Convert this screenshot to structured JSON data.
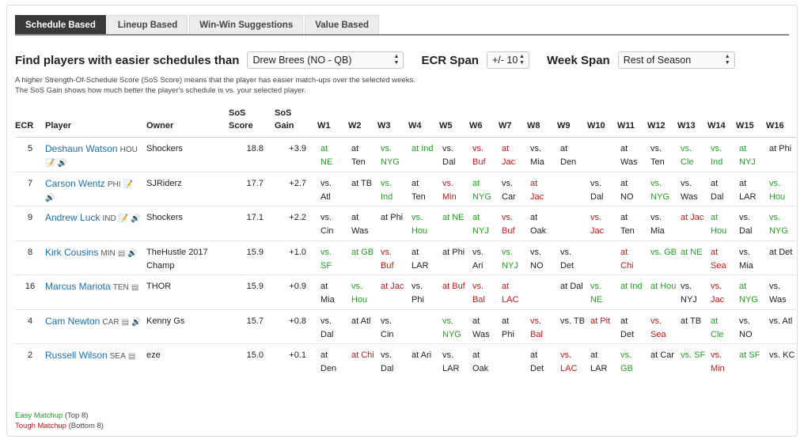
{
  "tabs": [
    {
      "label": "Schedule Based",
      "active": true
    },
    {
      "label": "Lineup Based",
      "active": false
    },
    {
      "label": "Win-Win Suggestions",
      "active": false
    },
    {
      "label": "Value Based",
      "active": false
    }
  ],
  "controls": {
    "find_label": "Find players with easier schedules than",
    "player_select": "Drew Brees (NO - QB)",
    "ecr_label": "ECR Span",
    "ecr_select": "+/- 10",
    "week_label": "Week Span",
    "week_select": "Rest of Season"
  },
  "description": {
    "line1": "A higher Strength-Of-Schedule Score (SoS Score) means that the player has easier match-ups over the selected weeks.",
    "line2": "The SoS Gain shows how much better the player's schedule is vs. your selected player."
  },
  "columns": {
    "ecr": "ECR",
    "player": "Player",
    "owner": "Owner",
    "sos_score_1": "SoS",
    "sos_score_2": "Score",
    "sos_gain_1": "SoS",
    "sos_gain_2": "Gain",
    "weeks": [
      "W1",
      "W2",
      "W3",
      "W4",
      "W5",
      "W6",
      "W7",
      "W8",
      "W9",
      "W10",
      "W11",
      "W12",
      "W13",
      "W14",
      "W15",
      "W16"
    ]
  },
  "rows": [
    {
      "ecr": "5",
      "name": "Deshaun Watson",
      "team": "HOU",
      "icons": [
        "note-add-icon",
        "audio-icon"
      ],
      "owner": "Shockers",
      "score": "18.8",
      "gain": "+3.9",
      "weeks": [
        [
          "at",
          "NE",
          "e"
        ],
        [
          "at",
          "Ten",
          "n"
        ],
        [
          "vs.",
          "NYG",
          "e"
        ],
        [
          "at Ind",
          "",
          "e"
        ],
        [
          "vs.",
          "Dal",
          "n"
        ],
        [
          "vs.",
          "Buf",
          "t"
        ],
        [
          "at",
          "Jac",
          "t"
        ],
        [
          "vs.",
          "Mia",
          "n"
        ],
        [
          "at",
          "Den",
          "n"
        ],
        [
          "",
          "",
          " n"
        ],
        [
          "at",
          "Was",
          "n"
        ],
        [
          "vs.",
          "Ten",
          "n"
        ],
        [
          "vs.",
          "Cle",
          "e"
        ],
        [
          "vs.",
          "Ind",
          "e"
        ],
        [
          "at",
          "NYJ",
          "e"
        ],
        [
          "at Phi",
          "",
          "n"
        ]
      ]
    },
    {
      "ecr": "7",
      "name": "Carson Wentz",
      "team": "PHI",
      "icons": [
        "note-add-icon",
        "audio-icon"
      ],
      "owner": "SJRiderz",
      "score": "17.7",
      "gain": "+2.7",
      "weeks": [
        [
          "vs.",
          "Atl",
          "n"
        ],
        [
          "at TB",
          "",
          "n"
        ],
        [
          "vs.",
          "Ind",
          "e"
        ],
        [
          "at",
          "Ten",
          "n"
        ],
        [
          "vs.",
          "Min",
          "t"
        ],
        [
          "at",
          "NYG",
          "e"
        ],
        [
          "vs.",
          "Car",
          "n"
        ],
        [
          "at",
          "Jac",
          "t"
        ],
        [
          "",
          "",
          "n"
        ],
        [
          "vs.",
          "Dal",
          "n"
        ],
        [
          "at",
          "NO",
          "n"
        ],
        [
          "vs.",
          "NYG",
          "e"
        ],
        [
          "vs.",
          "Was",
          "n"
        ],
        [
          "at",
          "Dal",
          "n"
        ],
        [
          "at",
          "LAR",
          "n"
        ],
        [
          "vs.",
          "Hou",
          "e"
        ]
      ]
    },
    {
      "ecr": "9",
      "name": "Andrew Luck",
      "team": "IND",
      "icons": [
        "note-add-icon",
        "audio-icon"
      ],
      "owner": "Shockers",
      "score": "17.1",
      "gain": "+2.2",
      "weeks": [
        [
          "vs.",
          "Cin",
          "n"
        ],
        [
          "at",
          "Was",
          "n"
        ],
        [
          "at Phi",
          "",
          "n"
        ],
        [
          "vs.",
          "Hou",
          "e"
        ],
        [
          "at NE",
          "",
          "e"
        ],
        [
          "at",
          "NYJ",
          "e"
        ],
        [
          "vs.",
          "Buf",
          "t"
        ],
        [
          "at",
          "Oak",
          "n"
        ],
        [
          "",
          "",
          "n"
        ],
        [
          "vs.",
          "Jac",
          "t"
        ],
        [
          "at",
          "Ten",
          "n"
        ],
        [
          "vs.",
          "Mia",
          "n"
        ],
        [
          "at Jac",
          "",
          "t"
        ],
        [
          "at",
          "Hou",
          "e"
        ],
        [
          "vs.",
          "Dal",
          "n"
        ],
        [
          "vs.",
          "NYG",
          "e"
        ]
      ]
    },
    {
      "ecr": "8",
      "name": "Kirk Cousins",
      "team": "MIN",
      "icons": [
        "note-icon",
        "audio-icon"
      ],
      "owner": "TheHustle 2017 Champ",
      "score": "15.9",
      "gain": "+1.0",
      "weeks": [
        [
          "vs.",
          "SF",
          "e"
        ],
        [
          "at GB",
          "",
          "e"
        ],
        [
          "vs.",
          "Buf",
          "t"
        ],
        [
          "at",
          "LAR",
          "n"
        ],
        [
          "at Phi",
          "",
          "n"
        ],
        [
          "vs.",
          "Ari",
          "n"
        ],
        [
          "vs.",
          "NYJ",
          "e"
        ],
        [
          "vs.",
          "NO",
          "n"
        ],
        [
          "vs.",
          "Det",
          "n"
        ],
        [
          "",
          "",
          "n"
        ],
        [
          "at",
          "Chi",
          "t"
        ],
        [
          "vs. GB",
          "",
          "e"
        ],
        [
          "at NE",
          "",
          "e"
        ],
        [
          "at",
          "Sea",
          "t"
        ],
        [
          "vs.",
          "Mia",
          "n"
        ],
        [
          "at Det",
          "",
          "n"
        ]
      ]
    },
    {
      "ecr": "16",
      "name": "Marcus Mariota",
      "team": "TEN",
      "icons": [
        "note-icon"
      ],
      "owner": "THOR",
      "score": "15.9",
      "gain": "+0.9",
      "weeks": [
        [
          "at",
          "Mia",
          "n"
        ],
        [
          "vs.",
          "Hou",
          "e"
        ],
        [
          "at Jac",
          "",
          "t"
        ],
        [
          "vs.",
          "Phi",
          "n"
        ],
        [
          "at Buf",
          "",
          "t"
        ],
        [
          "vs.",
          "Bal",
          "t"
        ],
        [
          "at",
          "LAC",
          "t"
        ],
        [
          "",
          "",
          "n"
        ],
        [
          "at Dal",
          "",
          "n"
        ],
        [
          "vs.",
          "NE",
          "e"
        ],
        [
          "at Ind",
          "",
          "e"
        ],
        [
          "at Hou",
          "",
          "e"
        ],
        [
          "vs.",
          "NYJ",
          "n"
        ],
        [
          "vs.",
          "Jac",
          "t"
        ],
        [
          "at",
          "NYG",
          "e"
        ],
        [
          "vs.",
          "Was",
          "n"
        ]
      ]
    },
    {
      "ecr": "4",
      "name": "Cam Newton",
      "team": "CAR",
      "icons": [
        "note-icon",
        "audio-icon"
      ],
      "owner": "Kenny Gs",
      "score": "15.7",
      "gain": "+0.8",
      "weeks": [
        [
          "vs.",
          "Dal",
          "n"
        ],
        [
          "at Atl",
          "",
          "n"
        ],
        [
          "vs.",
          "Cin",
          "n"
        ],
        [
          "",
          "",
          "n"
        ],
        [
          "vs.",
          "NYG",
          "e"
        ],
        [
          "at",
          "Was",
          "n"
        ],
        [
          "at",
          "Phi",
          "n"
        ],
        [
          "vs.",
          "Bal",
          "t"
        ],
        [
          "vs. TB",
          "",
          "n"
        ],
        [
          "at Pit",
          "",
          "t"
        ],
        [
          "at",
          "Det",
          "n"
        ],
        [
          "vs.",
          "Sea",
          "t"
        ],
        [
          "at TB",
          "",
          "n"
        ],
        [
          "at",
          "Cle",
          "e"
        ],
        [
          "vs.",
          "NO",
          "n"
        ],
        [
          "vs. Atl",
          "",
          "n"
        ]
      ]
    },
    {
      "ecr": "2",
      "name": "Russell Wilson",
      "team": "SEA",
      "icons": [
        "note-icon"
      ],
      "owner": "eze",
      "score": "15.0",
      "gain": "+0.1",
      "weeks": [
        [
          "at",
          "Den",
          "n"
        ],
        [
          "at Chi",
          "",
          "t"
        ],
        [
          "vs.",
          "Dal",
          "n"
        ],
        [
          "at Ari",
          "",
          "n"
        ],
        [
          "vs.",
          "LAR",
          "n"
        ],
        [
          "at",
          "Oak",
          "n"
        ],
        [
          "",
          "",
          "n"
        ],
        [
          "at",
          "Det",
          "n"
        ],
        [
          "vs.",
          "LAC",
          "t"
        ],
        [
          "at",
          "LAR",
          "n"
        ],
        [
          "vs.",
          "GB",
          "e"
        ],
        [
          "at Car",
          "",
          "n"
        ],
        [
          "vs. SF",
          "",
          "e"
        ],
        [
          "vs.",
          "Min",
          "t"
        ],
        [
          "at SF",
          "",
          "e"
        ],
        [
          "vs. KC",
          "",
          "n"
        ]
      ]
    }
  ],
  "legend": {
    "easy": "Easy Matchup",
    "easy_note": "(Top 8)",
    "tough": "Tough Matchup",
    "tough_note": "(Bottom 8)"
  },
  "colors": {
    "easy": "#22a022",
    "tough": "#c01818",
    "link": "#1a6fb0",
    "active_tab": "#3a3a3a"
  }
}
